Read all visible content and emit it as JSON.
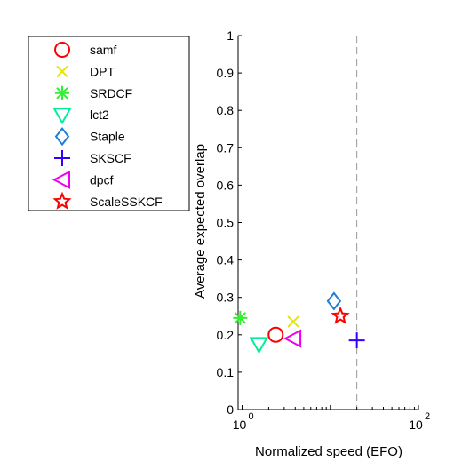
{
  "chart_data": {
    "type": "scatter",
    "title": "",
    "xlabel": "Normalized speed (EFO)",
    "ylabel": "Average expected overlap",
    "x_scale": "log",
    "xlim": [
      0.9,
      100
    ],
    "ylim": [
      0,
      1
    ],
    "x_ticks": [
      {
        "value": 1,
        "base": "10",
        "exp": "0"
      },
      {
        "value": 100,
        "base": "10",
        "exp": "2"
      }
    ],
    "y_ticks": [
      {
        "value": 0,
        "label": "0"
      },
      {
        "value": 0.1,
        "label": "0.1"
      },
      {
        "value": 0.2,
        "label": "0.2"
      },
      {
        "value": 0.3,
        "label": "0.3"
      },
      {
        "value": 0.4,
        "label": "0.4"
      },
      {
        "value": 0.5,
        "label": "0.5"
      },
      {
        "value": 0.6,
        "label": "0.6"
      },
      {
        "value": 0.7,
        "label": "0.7"
      },
      {
        "value": 0.8,
        "label": "0.8"
      },
      {
        "value": 0.9,
        "label": "0.9"
      },
      {
        "value": 1,
        "label": "1"
      }
    ],
    "reference_line_x": 20,
    "grid": false,
    "legend_position": "outside-left",
    "series": [
      {
        "name": "samf",
        "marker": "circle",
        "color": "#ff0000",
        "x": 2.4,
        "y": 0.2
      },
      {
        "name": "DPT",
        "marker": "x",
        "color": "#e6e600",
        "x": 3.8,
        "y": 0.235
      },
      {
        "name": "SRDCF",
        "marker": "asterisk",
        "color": "#33ee33",
        "x": 0.95,
        "y": 0.245
      },
      {
        "name": "lct2",
        "marker": "triangle-down",
        "color": "#00ee99",
        "x": 1.55,
        "y": 0.175
      },
      {
        "name": "Staple",
        "marker": "diamond",
        "color": "#1e7fd8",
        "x": 11.0,
        "y": 0.29
      },
      {
        "name": "SKSCF",
        "marker": "plus",
        "color": "#3300ff",
        "x": 20.0,
        "y": 0.185
      },
      {
        "name": "dpcf",
        "marker": "triangle-left",
        "color": "#ee00ee",
        "x": 3.8,
        "y": 0.19
      },
      {
        "name": "ScaleSSKCF",
        "marker": "star",
        "color": "#ff0000",
        "x": 13.0,
        "y": 0.25
      }
    ]
  }
}
